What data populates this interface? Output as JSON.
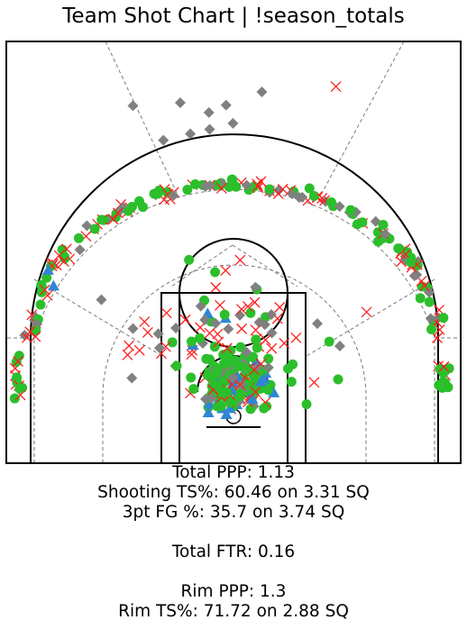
{
  "chart_data": {
    "type": "scatter",
    "title": "Team Shot Chart | !season_totals",
    "series": [],
    "shot_markers": {
      "made_circle": {
        "color": "#2bbf2b"
      },
      "missed_x": {
        "color": "#ff1f1f"
      },
      "diamond": {
        "color": "#808080"
      },
      "triangle": {
        "color": "#2e86d4"
      }
    },
    "annotations": [
      "Total PPP:  1.13",
      "Shooting TS%:  60.46 on 3.31 SQ",
      "3pt FG %:  35.7 on 3.74 SQ",
      "",
      "Total FTR:  0.16",
      "",
      "Rim PPP:  1.3",
      "Rim TS%:  71.72 on 2.88 SQ"
    ]
  }
}
